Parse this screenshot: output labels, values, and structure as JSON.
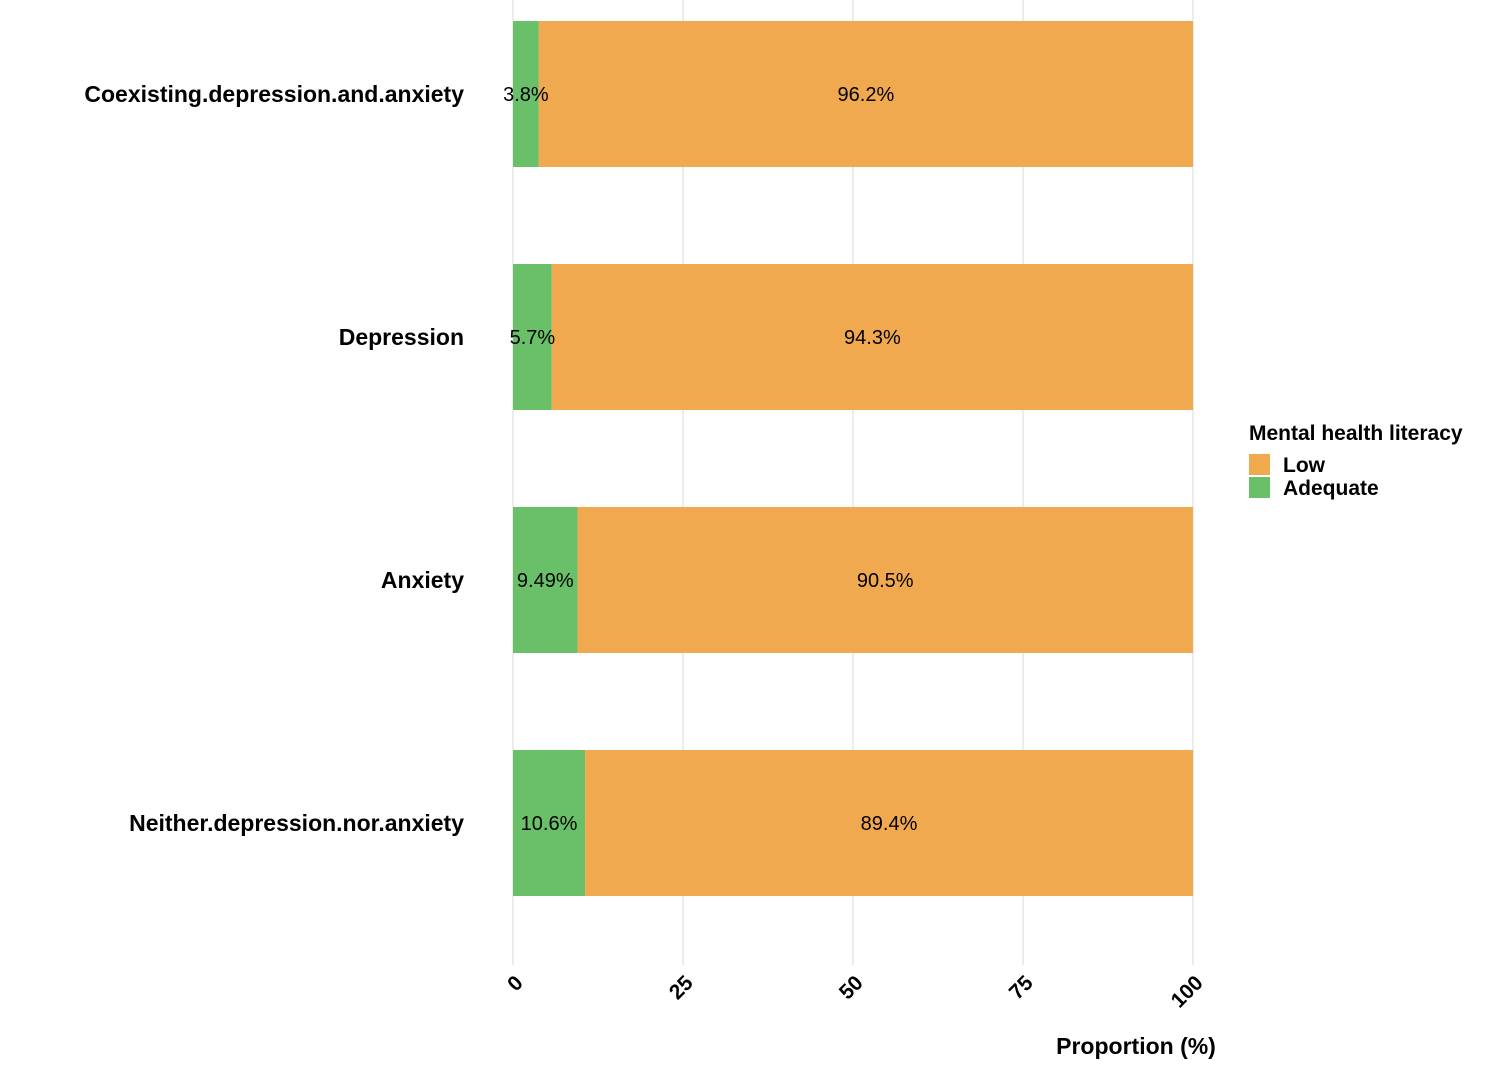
{
  "chart_data": {
    "type": "bar",
    "orientation": "horizontal",
    "stacked": true,
    "title": "",
    "xlabel": "Proportion (%)",
    "ylabel": "",
    "xlim": [
      0,
      100
    ],
    "x_ticks": [
      "0",
      "25",
      "50",
      "75",
      "100"
    ],
    "x_tick_values": [
      0,
      25,
      50,
      75,
      100
    ],
    "grid": true,
    "categories": [
      "Coexisting.depression.and.anxiety",
      "Depression",
      "Anxiety",
      "Neither.depression.nor.anxiety"
    ],
    "series": [
      {
        "name": "Adequate",
        "color": "#6abf69",
        "values": [
          3.8,
          5.7,
          9.49,
          10.6
        ],
        "labels": [
          "3.8%",
          "5.7%",
          "9.49%",
          "10.6%"
        ]
      },
      {
        "name": "Low",
        "color": "#f0a94e",
        "values": [
          96.2,
          94.3,
          90.5,
          89.4
        ],
        "labels": [
          "96.2%",
          "94.3%",
          "90.5%",
          "89.4%"
        ]
      }
    ],
    "legend": {
      "title": "Mental health literacy",
      "placement": "right",
      "entries": [
        {
          "label": "Low",
          "color": "#f0a94e"
        },
        {
          "label": "Adequate",
          "color": "#6abf69"
        }
      ]
    }
  }
}
